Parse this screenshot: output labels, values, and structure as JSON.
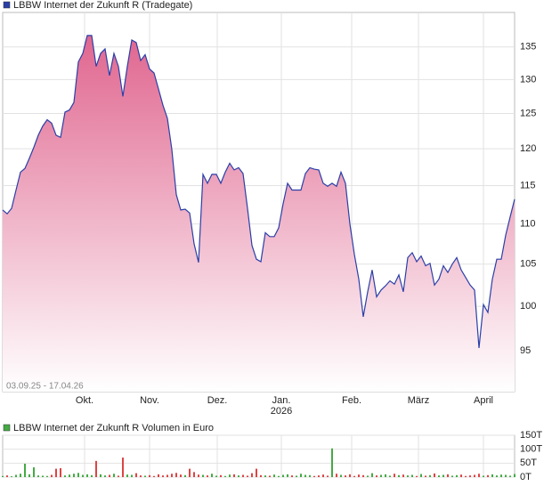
{
  "chart_data": [
    {
      "type": "area",
      "series": [
        {
          "name": "LBBW Internet der Zukunft R (Tradegate)",
          "color": "#e0668f",
          "line_color": "#2b3fa8",
          "values": [
            111.8,
            111.3,
            112.0,
            114.4,
            116.8,
            117.3,
            118.7,
            120.2,
            121.9,
            123.2,
            124.1,
            123.6,
            121.9,
            121.6,
            125.2,
            125.5,
            126.6,
            132.7,
            134.0,
            136.8,
            136.8,
            132.0,
            134.0,
            134.7,
            130.6,
            134.0,
            132.0,
            127.5,
            132.0,
            136.1,
            135.7,
            132.9,
            133.8,
            131.6,
            131.0,
            128.6,
            126.2,
            124.3,
            119.9,
            113.8,
            111.8,
            111.9,
            111.4,
            107.5,
            105.2,
            116.5,
            115.3,
            116.5,
            116.5,
            115.3,
            116.8,
            118.0,
            117.1,
            117.4,
            116.6,
            112.0,
            107.3,
            105.6,
            105.3,
            108.9,
            108.4,
            108.4,
            109.5,
            112.6,
            115.3,
            114.4,
            114.4,
            114.4,
            116.6,
            117.4,
            117.2,
            117.1,
            115.3,
            114.9,
            115.3,
            114.9,
            116.8,
            115.3,
            110.0,
            106.2,
            103.2,
            98.8,
            101.7,
            104.3,
            101.1,
            101.9,
            102.4,
            103.0,
            102.6,
            103.7,
            101.7,
            105.8,
            106.4,
            105.3,
            106.0,
            104.8,
            105.1,
            102.5,
            103.2,
            104.8,
            104.0,
            105.0,
            105.8,
            104.3,
            103.4,
            102.5,
            101.9,
            95.3,
            100.2,
            99.3,
            103.2,
            105.6,
            105.6,
            108.6,
            110.9,
            113.2
          ]
        }
      ],
      "date_range": "03.09.25 - 17.04.26",
      "yscale": "log",
      "ylim": [
        90.6,
        140.5
      ],
      "yticks": [
        95,
        100,
        105,
        110,
        115,
        120,
        125,
        130,
        135
      ],
      "xticks": [
        {
          "value": 18.4,
          "label": "Okt."
        },
        {
          "value": 33,
          "label": "Nov."
        },
        {
          "value": 48.2,
          "label": "Dez."
        },
        {
          "value": 62.6,
          "label": "Jan."
        },
        {
          "value": 78.4,
          "label": "Feb."
        },
        {
          "value": 93.4,
          "label": "März"
        },
        {
          "value": 108,
          "label": "April"
        }
      ],
      "year_label": "2026",
      "grid": true
    },
    {
      "type": "bar",
      "series": [
        {
          "name": "LBBW Internet der Zukunft R Volumen in Euro",
          "color": "#44aa44",
          "values": [
            4,
            6,
            3,
            8,
            12,
            48,
            10,
            35,
            6,
            5,
            4,
            8,
            30,
            32,
            6,
            9,
            12,
            15,
            8,
            10,
            7,
            58,
            10,
            6,
            8,
            12,
            5,
            70,
            9,
            8,
            14,
            6,
            5,
            7,
            4,
            10,
            6,
            8,
            12,
            15,
            9,
            7,
            30,
            18,
            9,
            8,
            6,
            12,
            5,
            7,
            4,
            9,
            10,
            6,
            8,
            5,
            14,
            30,
            7,
            6,
            5,
            9,
            4,
            8,
            10,
            6,
            5,
            12,
            8,
            7,
            4,
            6,
            9,
            5,
            103,
            12,
            8,
            6,
            10,
            4,
            9,
            7,
            5,
            14,
            6,
            8,
            10,
            5,
            12,
            7,
            9,
            6,
            8,
            4,
            11,
            5,
            7,
            13,
            6,
            8,
            10,
            5,
            7,
            9,
            4,
            6,
            8,
            12,
            5,
            7,
            10,
            6,
            9,
            8,
            5,
            11
          ]
        }
      ],
      "up_color": "#44aa44",
      "down_color": "#dd4444",
      "ylim": [
        0,
        150
      ],
      "yticks": [
        {
          "value": 0,
          "label": "0T"
        },
        {
          "value": 50,
          "label": "50T"
        },
        {
          "value": 100,
          "label": "100T"
        },
        {
          "value": 150,
          "label": "150T"
        }
      ],
      "grid": true
    }
  ]
}
